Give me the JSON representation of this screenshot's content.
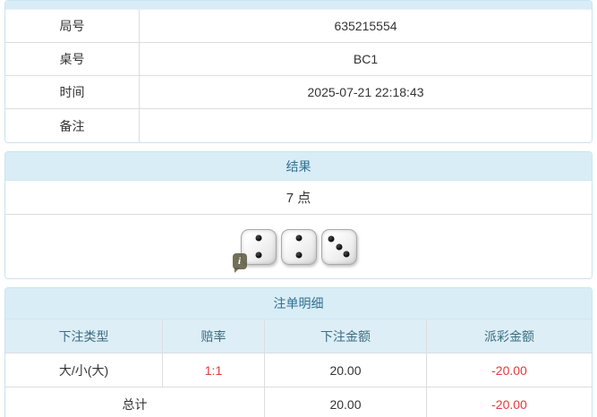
{
  "colors": {
    "header_bg": "#d9edf7",
    "header_text": "#31708f",
    "panel_border": "#c9e3f0",
    "row_border": "#dddddd",
    "negative_red": "#e4393c",
    "body_text": "#333333"
  },
  "info_panel": {
    "rows": [
      {
        "label": "局号",
        "value": "635215554"
      },
      {
        "label": "桌号",
        "value": "BC1"
      },
      {
        "label": "时间",
        "value": "2025-07-21 22:18:43"
      },
      {
        "label": "备注",
        "value": ""
      }
    ]
  },
  "result_panel": {
    "title": "结果",
    "points_text": "7 点",
    "dice": [
      2,
      2,
      3
    ],
    "dice_total": 7,
    "info_badge_glyph": "i"
  },
  "bets_panel": {
    "title": "注单明细",
    "columns": [
      "下注类型",
      "赔率",
      "下注金额",
      "派彩金额"
    ],
    "rows": [
      {
        "type": "大/小(大)",
        "odds": "1:1",
        "bet": "20.00",
        "payout": "-20.00"
      }
    ],
    "total": {
      "label": "总计",
      "bet": "20.00",
      "payout": "-20.00"
    }
  }
}
